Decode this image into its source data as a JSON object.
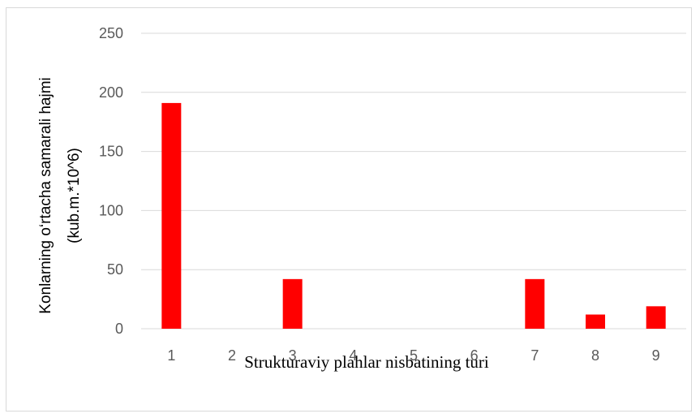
{
  "chart_data": {
    "type": "bar",
    "categories": [
      "1",
      "2",
      "3",
      "4",
      "5",
      "6",
      "7",
      "8",
      "9"
    ],
    "values": [
      191,
      0,
      42,
      0,
      0,
      0,
      42,
      12,
      19
    ],
    "ylim": [
      0,
      250
    ],
    "yticks": [
      "0",
      "50",
      "100",
      "150",
      "200",
      "250"
    ],
    "xlabel": "Strukturaviy plahlar nisbatining turi",
    "ylabel_lines": [
      "Konlarning o‘rtacha samarali hajmi",
      "(kub.m.*10^6)"
    ],
    "grid": true,
    "bar_color": "#ff0000",
    "grid_color": "#d9d9d9"
  }
}
